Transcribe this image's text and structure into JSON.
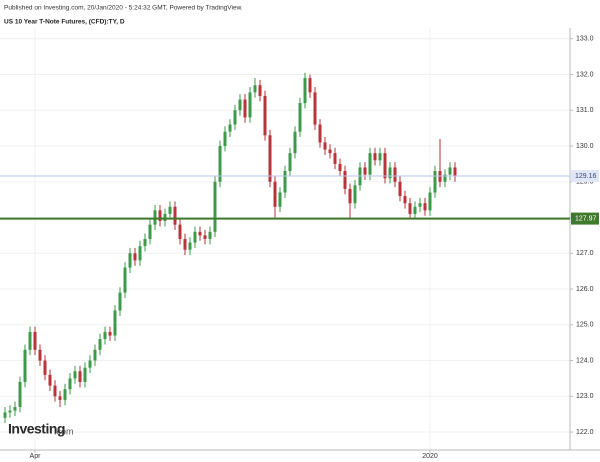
{
  "chart_data": {
    "type": "candlestick",
    "header": "Published on Investing.com, 20/Jan/2020 - 5:24:32 GMT, Powered by TradingView.",
    "title": "US 10 Year T-Note Futures, (CFD):TY, D",
    "logo": "Investing",
    "logo_suffix": ".com",
    "up_color": "#3d9a4a",
    "down_color": "#b8333a",
    "categories": [
      null,
      null,
      null,
      null,
      null,
      null,
      "Apr",
      null,
      null,
      null,
      null,
      null,
      null,
      null,
      null,
      null,
      null,
      null,
      null,
      null,
      null,
      null,
      null,
      null,
      null,
      null,
      null,
      null,
      null,
      null,
      null,
      null,
      null,
      null,
      null,
      null,
      null,
      null,
      null,
      null,
      null,
      null,
      null,
      null,
      null,
      null,
      null,
      null,
      null,
      null,
      null,
      null,
      null,
      null,
      null,
      null,
      null,
      null,
      null,
      null,
      null,
      null,
      null,
      null,
      null,
      null,
      null,
      null,
      null,
      null,
      null,
      null,
      null,
      null,
      null,
      null,
      null,
      null,
      null,
      null,
      null,
      null,
      null,
      null,
      null,
      "2020",
      null,
      null,
      null,
      null,
      null
    ],
    "open": [
      122.4,
      122.55,
      122.6,
      122.7,
      123.4,
      124.3,
      124.8,
      124.3,
      124.0,
      123.6,
      123.3,
      123.0,
      122.9,
      123.2,
      123.5,
      123.7,
      123.4,
      123.8,
      124.0,
      124.3,
      124.6,
      124.8,
      124.7,
      125.4,
      125.9,
      126.6,
      127.0,
      126.8,
      127.2,
      127.4,
      127.8,
      128.2,
      127.9,
      128.1,
      128.3,
      127.8,
      127.4,
      127.1,
      127.3,
      127.6,
      127.5,
      127.4,
      127.6,
      129.0,
      130.0,
      130.4,
      130.6,
      131.0,
      131.3,
      130.8,
      131.5,
      131.7,
      131.4,
      130.3,
      129.0,
      128.3,
      128.7,
      129.3,
      129.8,
      130.4,
      131.2,
      131.9,
      131.5,
      130.6,
      130.1,
      129.9,
      129.8,
      129.5,
      129.3,
      128.8,
      128.4,
      128.9,
      129.4,
      129.2,
      129.8,
      129.6,
      129.8,
      129.1,
      129.4,
      129.0,
      128.6,
      128.4,
      128.1,
      128.3,
      128.4,
      128.2,
      128.7,
      129.3,
      129.0,
      129.2,
      129.4
    ],
    "high": [
      122.7,
      122.75,
      122.85,
      123.55,
      124.45,
      124.95,
      124.95,
      124.45,
      124.15,
      123.75,
      123.45,
      123.15,
      123.35,
      123.65,
      123.85,
      123.85,
      123.95,
      124.15,
      124.45,
      124.75,
      124.95,
      124.95,
      125.55,
      126.05,
      126.75,
      127.15,
      127.15,
      127.35,
      127.55,
      127.95,
      128.35,
      128.35,
      128.25,
      128.45,
      128.45,
      127.95,
      127.55,
      127.45,
      127.75,
      127.75,
      127.65,
      127.75,
      129.15,
      130.15,
      130.55,
      130.75,
      131.15,
      131.45,
      131.45,
      131.65,
      131.9,
      131.85,
      131.55,
      130.45,
      129.15,
      128.85,
      129.45,
      129.95,
      130.55,
      131.35,
      132.05,
      132.0,
      131.65,
      130.75,
      130.25,
      130.05,
      129.95,
      129.65,
      129.45,
      128.95,
      129.05,
      129.55,
      129.55,
      129.95,
      129.95,
      129.95,
      129.95,
      129.55,
      129.55,
      129.15,
      128.75,
      128.55,
      128.45,
      128.55,
      128.55,
      128.85,
      129.45,
      130.2,
      129.35,
      129.55,
      129.55
    ],
    "low": [
      122.25,
      122.4,
      122.45,
      122.55,
      123.25,
      124.15,
      124.15,
      123.85,
      123.45,
      123.15,
      122.85,
      122.7,
      122.75,
      123.05,
      123.35,
      123.25,
      123.25,
      123.65,
      123.85,
      124.15,
      124.45,
      124.55,
      124.55,
      125.25,
      125.75,
      126.45,
      126.65,
      126.65,
      127.05,
      127.25,
      127.65,
      127.75,
      127.75,
      127.95,
      127.65,
      127.25,
      126.95,
      126.95,
      127.15,
      127.35,
      127.25,
      127.25,
      127.45,
      128.85,
      129.85,
      130.25,
      130.45,
      130.85,
      130.65,
      130.65,
      131.35,
      131.25,
      130.15,
      128.85,
      128.0,
      128.15,
      128.55,
      129.15,
      129.65,
      130.25,
      131.05,
      131.35,
      130.45,
      129.95,
      129.75,
      129.65,
      129.35,
      129.15,
      128.65,
      128.0,
      128.25,
      128.75,
      129.05,
      129.05,
      129.45,
      129.45,
      128.95,
      128.95,
      128.85,
      128.45,
      128.25,
      128.0,
      127.95,
      128.15,
      128.05,
      128.05,
      128.55,
      128.85,
      128.85,
      129.05,
      129.0
    ],
    "close": [
      122.55,
      122.6,
      122.7,
      123.4,
      124.3,
      124.8,
      124.3,
      124.0,
      123.6,
      123.3,
      123.0,
      122.9,
      123.2,
      123.5,
      123.7,
      123.4,
      123.8,
      124.0,
      124.3,
      124.6,
      124.8,
      124.7,
      125.4,
      125.9,
      126.6,
      127.0,
      126.8,
      127.2,
      127.4,
      127.8,
      128.2,
      127.9,
      128.1,
      128.3,
      127.8,
      127.4,
      127.1,
      127.3,
      127.6,
      127.5,
      127.4,
      127.6,
      129.0,
      130.0,
      130.4,
      130.6,
      131.0,
      131.3,
      130.8,
      131.5,
      131.7,
      131.4,
      130.3,
      129.0,
      128.3,
      128.7,
      129.3,
      129.8,
      130.4,
      131.2,
      131.9,
      131.5,
      130.6,
      130.1,
      129.9,
      129.8,
      129.5,
      129.3,
      128.8,
      128.4,
      128.9,
      129.4,
      129.2,
      129.8,
      129.6,
      129.8,
      129.1,
      129.4,
      129.0,
      128.6,
      128.4,
      128.1,
      128.3,
      128.4,
      128.2,
      128.7,
      129.3,
      129.0,
      129.2,
      129.4,
      129.16
    ],
    "price_lines": [
      {
        "value": 129.16,
        "color": "#b7c4e8",
        "label_bg": "#dfe6f7",
        "label_color": "#3a4a7a",
        "width": 1
      },
      {
        "value": 127.97,
        "color": "#3f7a2a",
        "label_bg": "#3f7a2a",
        "label_color": "#ffffff",
        "width": 2
      }
    ],
    "ylim": [
      121.75,
      133.3
    ],
    "yticks": [
      {
        "value": 122,
        "label": "122.0"
      },
      {
        "value": 123,
        "label": "123.0"
      },
      {
        "value": 124,
        "label": "124.0"
      },
      {
        "value": 125,
        "label": "125.0"
      },
      {
        "value": 126,
        "label": "126.0"
      },
      {
        "value": 127,
        "label": "127.0"
      },
      {
        "value": 128,
        "label": "128.0"
      },
      {
        "value": 129,
        "label": "129.0"
      },
      {
        "value": 130,
        "label": "130.0"
      },
      {
        "value": 131,
        "label": "131.0"
      },
      {
        "value": 132,
        "label": "132.0"
      },
      {
        "value": 133,
        "label": "133.0"
      }
    ]
  }
}
